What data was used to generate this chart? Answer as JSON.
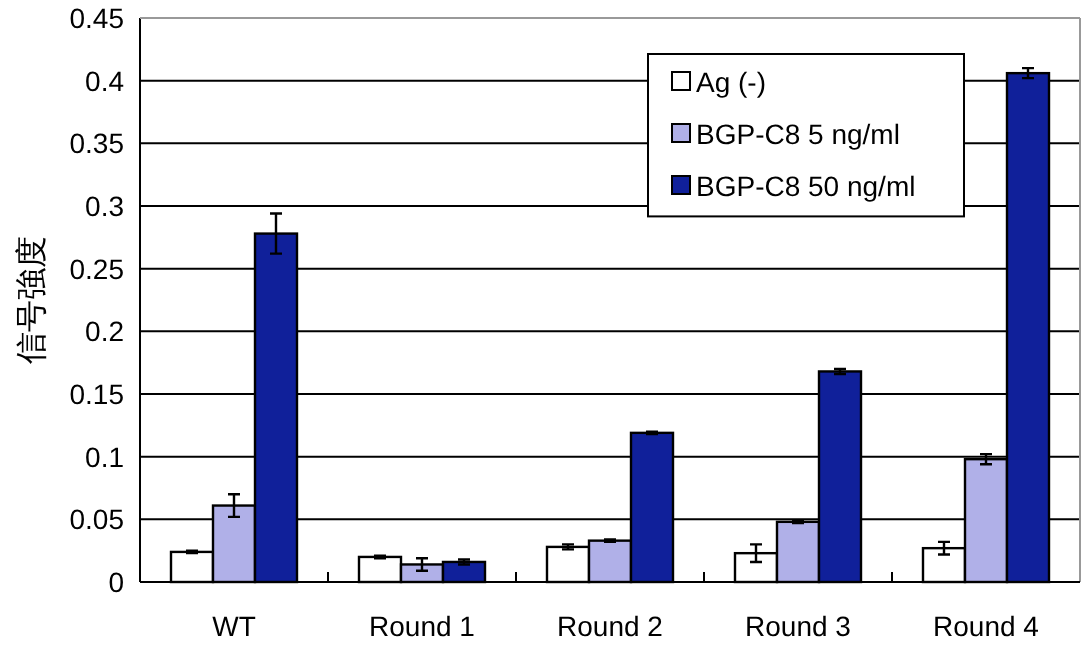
{
  "chart_data": {
    "type": "bar",
    "ylabel": "信号強度",
    "categories": [
      "WT",
      "Round 1",
      "Round 2",
      "Round 3",
      "Round 4"
    ],
    "series": [
      {
        "name": "Ag (-)",
        "color": "#ffffff",
        "values": [
          0.024,
          0.02,
          0.028,
          0.023,
          0.027
        ],
        "errors": [
          0.001,
          0.001,
          0.002,
          0.007,
          0.005
        ]
      },
      {
        "name": "BGP-C8 5 ng/ml",
        "color": "#b0b0e8",
        "values": [
          0.061,
          0.014,
          0.033,
          0.048,
          0.098
        ],
        "errors": [
          0.009,
          0.005,
          0.001,
          0.001,
          0.004
        ]
      },
      {
        "name": "BGP-C8 50 ng/ml",
        "color": "#10209a",
        "values": [
          0.278,
          0.016,
          0.119,
          0.168,
          0.406
        ],
        "errors": [
          0.016,
          0.002,
          0.001,
          0.002,
          0.004
        ]
      }
    ],
    "ylim": [
      0,
      0.45
    ],
    "yticks": [
      0,
      0.05,
      0.1,
      0.15,
      0.2,
      0.25,
      0.3,
      0.35,
      0.4,
      0.45
    ],
    "grid": "y",
    "legend": "top right"
  }
}
